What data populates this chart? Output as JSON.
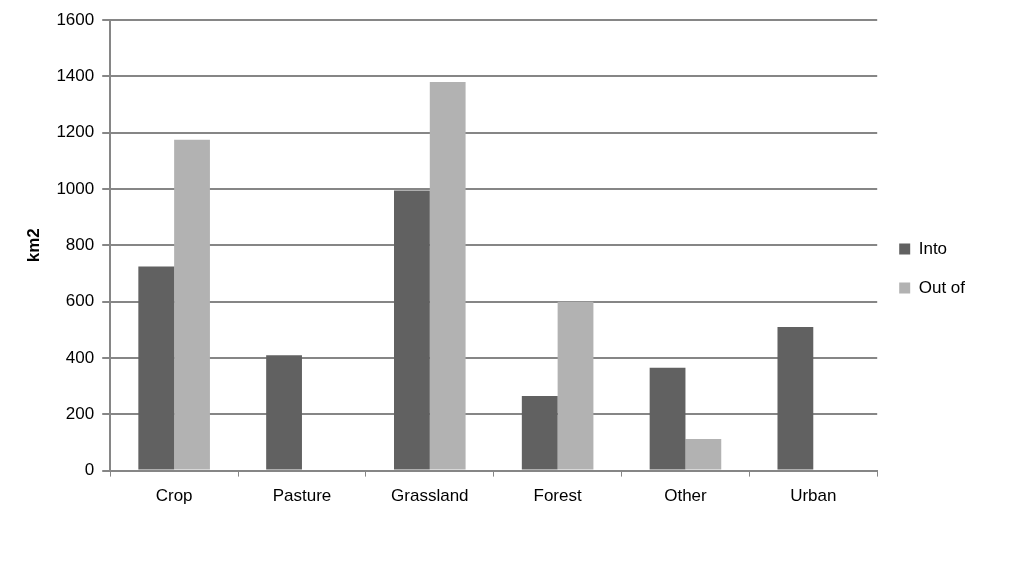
{
  "chart_data": {
    "type": "bar",
    "ylabel": "km2",
    "categories": [
      "Crop",
      "Pasture",
      "Grassland",
      "Forest",
      "Other",
      "Urban"
    ],
    "series": [
      {
        "name": "Into",
        "color": "#616161",
        "values": [
          725,
          410,
          995,
          265,
          365,
          510
        ]
      },
      {
        "name": "Out of",
        "color": "#b2b2b2",
        "values": [
          1175,
          0,
          1380,
          600,
          112,
          0
        ]
      }
    ],
    "ylim": [
      0,
      1600
    ],
    "yticks": [
      0,
      200,
      400,
      600,
      800,
      1000,
      1200,
      1400,
      1600
    ],
    "grid": "y",
    "legend": "right"
  }
}
